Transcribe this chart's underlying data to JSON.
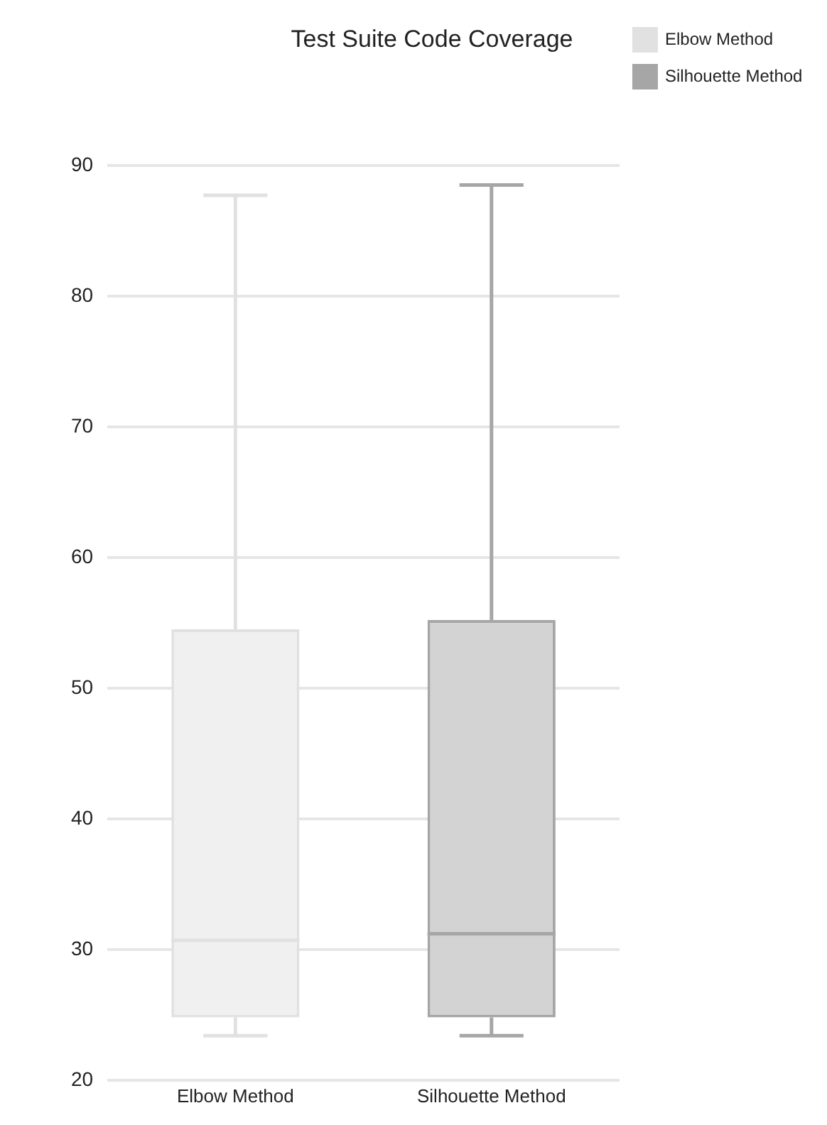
{
  "chart_data": {
    "type": "box",
    "title": "Test Suite Code Coverage",
    "categories": [
      "Elbow Method",
      "Silhouette Method"
    ],
    "series": [
      {
        "name": "Elbow Method",
        "color": "#e1e1e1",
        "boxes": [
          {
            "low": 23.4,
            "q1": 24.8,
            "median": 30.7,
            "q3": 54.5,
            "high": 87.7
          },
          null
        ]
      },
      {
        "name": "Silhouette Method",
        "color": "#a6a6a6",
        "boxes": [
          null,
          {
            "low": 23.4,
            "q1": 24.8,
            "median": 31.2,
            "q3": 55.2,
            "high": 88.5
          }
        ]
      }
    ],
    "ylim": [
      20,
      90
    ],
    "yticks": [
      20,
      30,
      40,
      50,
      60,
      70,
      80,
      90
    ],
    "grid": "y",
    "legend": "top right"
  }
}
